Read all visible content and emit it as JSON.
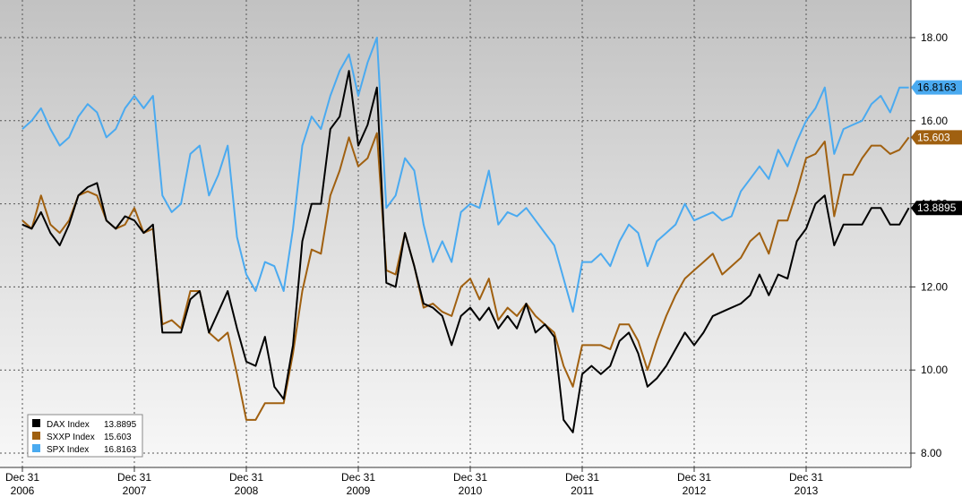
{
  "chart_data": {
    "type": "line",
    "title": "",
    "xlabel": "",
    "ylabel": "",
    "x_tick_labels": [
      {
        "line1": "Dec 31",
        "line2": "2006"
      },
      {
        "line1": "Dec 31",
        "line2": "2007"
      },
      {
        "line1": "Dec 31",
        "line2": "2008"
      },
      {
        "line1": "Dec 31",
        "line2": "2009"
      },
      {
        "line1": "Dec 31",
        "line2": "2010"
      },
      {
        "line1": "Dec 31",
        "line2": "2011"
      },
      {
        "line1": "Dec 31",
        "line2": "2012"
      },
      {
        "line1": "Dec 31",
        "line2": "2013"
      }
    ],
    "y_tick_labels": [
      "8.00",
      "10.00",
      "12.00",
      "14.00",
      "16.00",
      "18.00"
    ],
    "ylim": [
      7.8,
      18.9
    ],
    "x_range": [
      "2006-12",
      "2014-09"
    ],
    "grid": true,
    "legend_position": "bottom-left",
    "legend": [
      {
        "name": "DAX Index",
        "value": "13.8895",
        "color": "#000000"
      },
      {
        "name": "SXXP Index",
        "value": "15.603",
        "color": "#a06010"
      },
      {
        "name": "SPX Index",
        "value": "16.8163",
        "color": "#4aaaf0"
      }
    ],
    "series": [
      {
        "name": "DAX Index",
        "color": "#000000",
        "last_value_label": "13.8895",
        "values": [
          13.5,
          13.4,
          13.8,
          13.3,
          13.0,
          13.5,
          14.2,
          14.4,
          14.5,
          13.6,
          13.4,
          13.7,
          13.6,
          13.3,
          13.5,
          10.9,
          10.9,
          10.9,
          11.7,
          11.9,
          10.9,
          11.4,
          11.9,
          11.0,
          10.2,
          10.1,
          10.8,
          9.6,
          9.3,
          10.6,
          13.1,
          14.0,
          14.0,
          15.8,
          16.1,
          17.2,
          15.4,
          15.9,
          16.8,
          12.1,
          12.0,
          13.3,
          12.5,
          11.6,
          11.5,
          11.3,
          10.6,
          11.3,
          11.5,
          11.2,
          11.5,
          11.0,
          11.3,
          11.0,
          11.6,
          10.9,
          11.1,
          10.8,
          8.8,
          8.5,
          9.9,
          10.1,
          9.9,
          10.1,
          10.7,
          10.9,
          10.4,
          9.6,
          9.8,
          10.1,
          10.5,
          10.9,
          10.6,
          10.9,
          11.3,
          11.4,
          11.5,
          11.6,
          11.8,
          12.3,
          11.8,
          12.3,
          12.2,
          13.1,
          13.4,
          14.0,
          14.2,
          13.0,
          13.5,
          13.5,
          13.5,
          13.9,
          13.9,
          13.5,
          13.5,
          13.9
        ]
      },
      {
        "name": "SXXP Index",
        "color": "#a06010",
        "last_value_label": "15.603",
        "values": [
          13.6,
          13.4,
          14.2,
          13.5,
          13.3,
          13.6,
          14.2,
          14.3,
          14.2,
          13.6,
          13.4,
          13.5,
          13.9,
          13.3,
          13.4,
          11.1,
          11.2,
          11.0,
          11.9,
          11.9,
          10.9,
          10.7,
          10.9,
          9.9,
          8.8,
          8.8,
          9.2,
          9.2,
          9.2,
          10.4,
          11.9,
          12.9,
          12.8,
          14.2,
          14.8,
          15.6,
          14.9,
          15.1,
          15.7,
          12.4,
          12.3,
          13.3,
          12.5,
          11.5,
          11.6,
          11.4,
          11.3,
          12.0,
          12.2,
          11.7,
          12.2,
          11.2,
          11.5,
          11.3,
          11.6,
          11.3,
          11.1,
          10.9,
          10.1,
          9.6,
          10.6,
          10.6,
          10.6,
          10.5,
          11.1,
          11.1,
          10.7,
          10.0,
          10.7,
          11.3,
          11.8,
          12.2,
          12.4,
          12.6,
          12.8,
          12.3,
          12.5,
          12.7,
          13.1,
          13.3,
          12.8,
          13.6,
          13.6,
          14.3,
          15.1,
          15.2,
          15.5,
          13.7,
          14.7,
          14.7,
          15.1,
          15.4,
          15.4,
          15.2,
          15.3,
          15.6
        ]
      },
      {
        "name": "SPX Index",
        "color": "#4aaaf0",
        "last_value_label": "16.8163",
        "values": [
          15.8,
          16.0,
          16.3,
          15.8,
          15.4,
          15.6,
          16.1,
          16.4,
          16.2,
          15.6,
          15.8,
          16.3,
          16.6,
          16.3,
          16.6,
          14.2,
          13.8,
          14.0,
          15.2,
          15.4,
          14.2,
          14.7,
          15.4,
          13.2,
          12.3,
          11.9,
          12.6,
          12.5,
          11.9,
          13.4,
          15.4,
          16.1,
          15.8,
          16.6,
          17.2,
          17.6,
          16.6,
          17.4,
          18.0,
          13.9,
          14.2,
          15.1,
          14.8,
          13.5,
          12.6,
          13.1,
          12.6,
          13.8,
          14.0,
          13.9,
          14.8,
          13.5,
          13.8,
          13.7,
          13.9,
          13.6,
          13.3,
          13.0,
          12.2,
          11.4,
          12.6,
          12.6,
          12.8,
          12.5,
          13.1,
          13.5,
          13.3,
          12.5,
          13.1,
          13.3,
          13.5,
          14.0,
          13.6,
          13.7,
          13.8,
          13.6,
          13.7,
          14.3,
          14.6,
          14.9,
          14.6,
          15.3,
          14.9,
          15.5,
          16.0,
          16.3,
          16.8,
          15.2,
          15.8,
          15.9,
          16.0,
          16.4,
          16.6,
          16.2,
          16.8,
          16.8
        ]
      }
    ]
  }
}
